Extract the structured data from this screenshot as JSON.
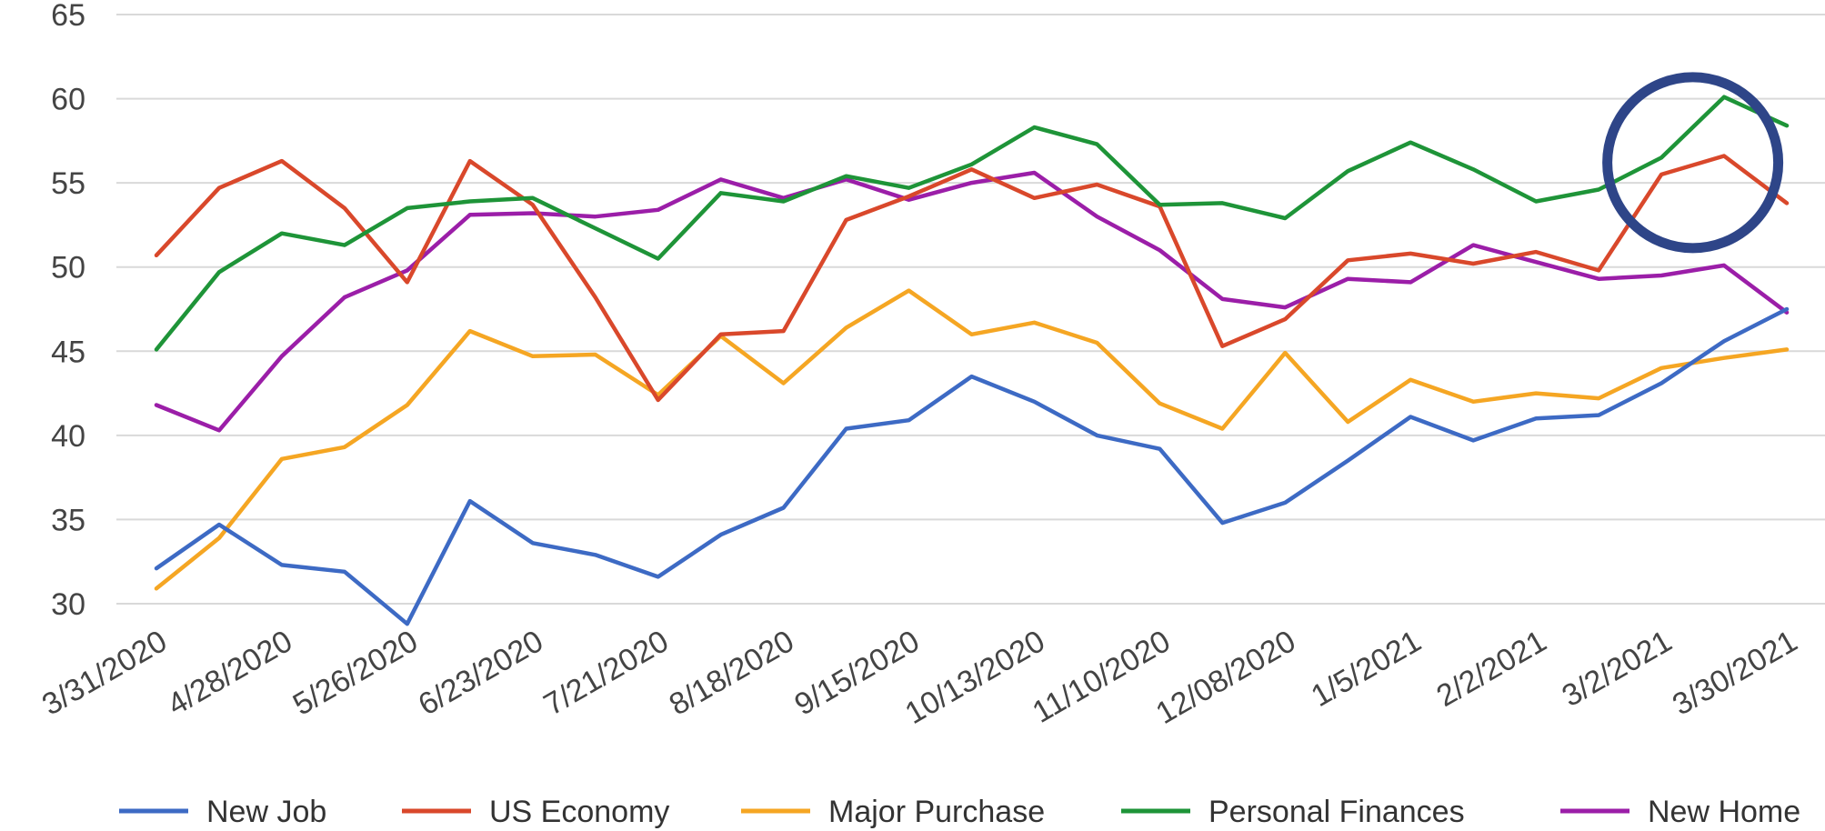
{
  "chart_data": {
    "type": "line",
    "title": "",
    "xlabel": "",
    "ylabel": "",
    "ylim": [
      30,
      65
    ],
    "yticks": [
      30,
      35,
      40,
      45,
      50,
      55,
      60,
      65
    ],
    "grid": true,
    "legend_position": "bottom",
    "x_tick_labels": [
      "3/31/2020",
      "4/28/2020",
      "5/26/2020",
      "6/23/2020",
      "7/21/2020",
      "8/18/2020",
      "9/15/2020",
      "10/13/2020",
      "11/10/2020",
      "12/08/2020",
      "1/5/2021",
      "2/2/2021",
      "3/2/2021",
      "3/30/2021"
    ],
    "x_count": 27,
    "series": [
      {
        "name": "New Job",
        "color": "#3d6ac4",
        "values": [
          32.1,
          34.7,
          32.3,
          31.9,
          28.8,
          36.1,
          33.6,
          32.9,
          31.6,
          34.1,
          35.7,
          40.4,
          40.9,
          43.5,
          42.0,
          40.0,
          39.2,
          34.8,
          36.0,
          38.5,
          41.1,
          39.7,
          41.0,
          41.2,
          43.1,
          45.6,
          47.5
        ]
      },
      {
        "name": "US Economy",
        "color": "#d9482b",
        "values": [
          50.7,
          54.7,
          56.3,
          53.5,
          49.1,
          56.3,
          53.7,
          48.2,
          42.1,
          46.0,
          46.2,
          52.8,
          54.2,
          55.8,
          54.1,
          54.9,
          53.6,
          45.3,
          46.9,
          50.4,
          50.8,
          50.2,
          50.9,
          49.8,
          55.5,
          56.6,
          53.8
        ]
      },
      {
        "name": "Major Purchase",
        "color": "#f5a623",
        "values": [
          30.9,
          33.9,
          38.6,
          39.3,
          41.8,
          46.2,
          44.7,
          44.8,
          42.4,
          45.9,
          43.1,
          46.4,
          48.6,
          46.0,
          46.7,
          45.5,
          41.9,
          40.4,
          44.9,
          40.8,
          43.3,
          42.0,
          42.5,
          42.2,
          44.0,
          44.6,
          45.1
        ]
      },
      {
        "name": "Personal Finances",
        "color": "#1e9438",
        "values": [
          45.1,
          49.7,
          52.0,
          51.3,
          53.5,
          53.9,
          54.1,
          52.3,
          50.5,
          54.4,
          53.9,
          55.4,
          54.7,
          56.1,
          58.3,
          57.3,
          53.7,
          53.8,
          52.9,
          55.7,
          57.4,
          55.8,
          53.9,
          54.6,
          56.5,
          60.1,
          58.4
        ]
      },
      {
        "name": "New Home",
        "color": "#9b1ea8",
        "values": [
          41.8,
          40.3,
          44.7,
          48.2,
          49.8,
          53.1,
          53.2,
          53.0,
          53.4,
          55.2,
          54.1,
          55.2,
          54.0,
          55.0,
          55.6,
          53.0,
          51.0,
          48.1,
          47.6,
          49.3,
          49.1,
          51.3,
          50.3,
          49.3,
          49.5,
          50.1,
          47.3
        ]
      }
    ],
    "annotation": {
      "type": "circle",
      "color": "#2e4588",
      "x_index": 24.5,
      "y_value": 56.2
    }
  }
}
